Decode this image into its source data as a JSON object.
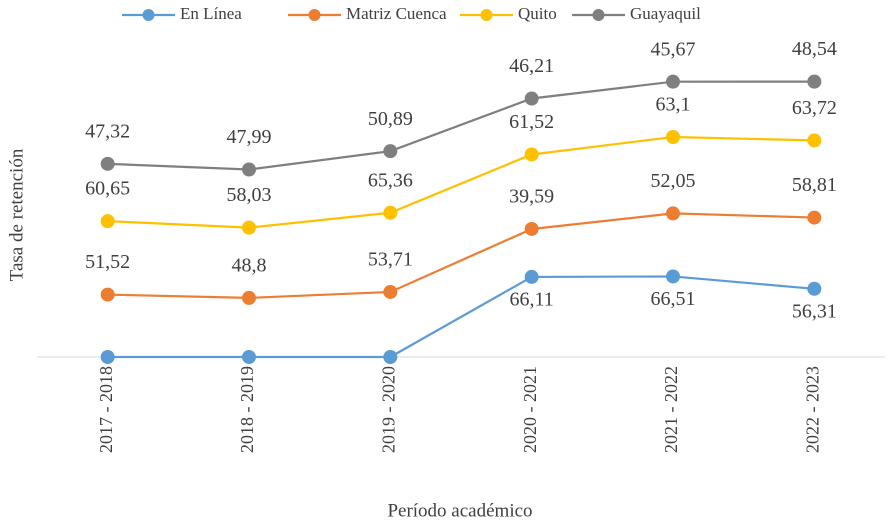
{
  "chart_data": {
    "type": "line",
    "stacked": true,
    "x_label": "Período académico",
    "y_label": "Tasa de retención",
    "categories": [
      "2017 - 2018",
      "2018 - 2019",
      "2019 - 2020",
      "2020 - 2021",
      "2021 - 2022",
      "2022 - 2023"
    ],
    "ylim": [
      0,
      270
    ],
    "legend": "top",
    "series": [
      {
        "name": "En Línea",
        "color": "#5b9bd5",
        "values": [
          0,
          0,
          0,
          66.11,
          66.51,
          56.31
        ],
        "value_labels": [
          null,
          null,
          null,
          "66,11",
          "66,51",
          "56,31"
        ]
      },
      {
        "name": "Matriz Cuenca",
        "color": "#ed7d31",
        "values": [
          51.52,
          48.8,
          53.71,
          39.59,
          52.05,
          58.81
        ],
        "value_labels": [
          "51,52",
          "48,8",
          "53,71",
          "39,59",
          "52,05",
          "58,81"
        ]
      },
      {
        "name": "Quito",
        "color": "#ffc000",
        "values": [
          60.65,
          58.03,
          65.36,
          61.52,
          63.1,
          63.72
        ],
        "value_labels": [
          "60,65",
          "58,03",
          "65,36",
          "61,52",
          "63,1",
          "63,72"
        ]
      },
      {
        "name": "Guayaquil",
        "color": "#7f7f7f",
        "values": [
          47.32,
          47.99,
          50.89,
          46.21,
          45.67,
          48.54
        ],
        "value_labels": [
          "47,32",
          "47,99",
          "50,89",
          "46,21",
          "45,67",
          "48,54"
        ]
      }
    ]
  }
}
